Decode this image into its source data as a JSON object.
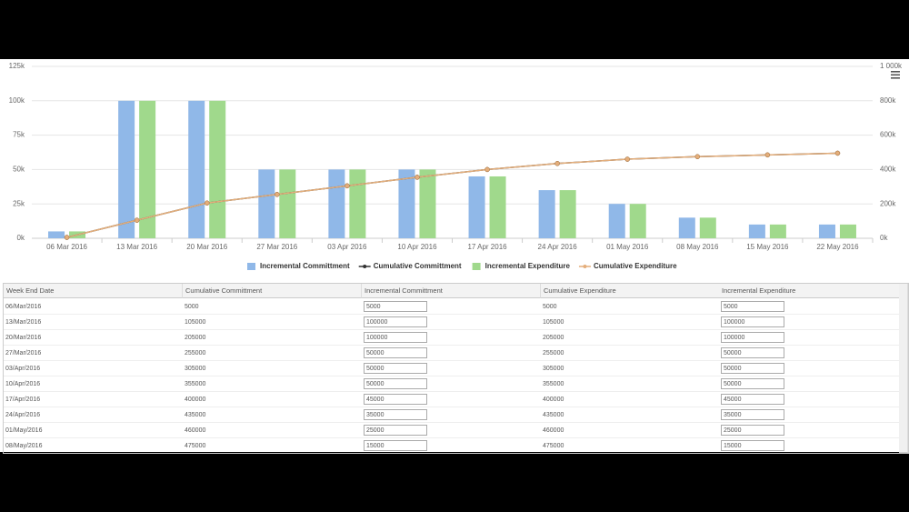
{
  "chart_data": {
    "type": "bar-line",
    "categories": [
      "06 Mar 2016",
      "13 Mar 2016",
      "20 Mar 2016",
      "27 Mar 2016",
      "03 Apr 2016",
      "10 Apr 2016",
      "17 Apr 2016",
      "24 Apr 2016",
      "01 May 2016",
      "08 May 2016",
      "15 May 2016",
      "22 May 2016"
    ],
    "series": [
      {
        "name": "Incremental Committment",
        "type": "bar",
        "color": "#90b8e8",
        "values": [
          5000,
          100000,
          100000,
          50000,
          50000,
          50000,
          45000,
          35000,
          25000,
          15000,
          10000,
          10000
        ]
      },
      {
        "name": "Cumulative Committment",
        "type": "line",
        "axis": "y2",
        "color": "#333333",
        "values": [
          5000,
          105000,
          205000,
          255000,
          305000,
          355000,
          400000,
          435000,
          460000,
          475000,
          485000,
          495000
        ]
      },
      {
        "name": "Incremental Expenditure",
        "type": "bar",
        "color": "#a0d98c",
        "values": [
          5000,
          100000,
          100000,
          50000,
          50000,
          50000,
          45000,
          35000,
          25000,
          15000,
          10000,
          10000
        ]
      },
      {
        "name": "Cumulative Expenditure",
        "type": "line",
        "axis": "y2",
        "color": "#e4ae7b",
        "values": [
          5000,
          105000,
          205000,
          255000,
          305000,
          355000,
          400000,
          435000,
          460000,
          475000,
          485000,
          495000
        ]
      }
    ],
    "ylim": [
      0,
      125000
    ],
    "yticks": [
      {
        "value": 0,
        "label": "0k"
      },
      {
        "value": 25000,
        "label": "25k"
      },
      {
        "value": 50000,
        "label": "50k"
      },
      {
        "value": 75000,
        "label": "75k"
      },
      {
        "value": 100000,
        "label": "100k"
      },
      {
        "value": 125000,
        "label": "125k"
      }
    ],
    "y2lim": [
      0,
      1000000
    ],
    "y2ticks": [
      {
        "value": 0,
        "label": "0k"
      },
      {
        "value": 200000,
        "label": "200k"
      },
      {
        "value": 400000,
        "label": "400k"
      },
      {
        "value": 600000,
        "label": "600k"
      },
      {
        "value": 800000,
        "label": "800k"
      },
      {
        "value": 1000000,
        "label": "1 000k"
      }
    ],
    "grid": true,
    "legend": "bottom"
  },
  "table": {
    "columns": [
      "Week End Date",
      "Cumulative Committment",
      "Incremental Committment",
      "Cumulative Expenditure",
      "Incremental Expenditure"
    ],
    "rows": [
      [
        "06/Mar/2016",
        "5000",
        "5000",
        "5000",
        "5000"
      ],
      [
        "13/Mar/2016",
        "105000",
        "100000",
        "105000",
        "100000"
      ],
      [
        "20/Mar/2016",
        "205000",
        "100000",
        "205000",
        "100000"
      ],
      [
        "27/Mar/2016",
        "255000",
        "50000",
        "255000",
        "50000"
      ],
      [
        "03/Apr/2016",
        "305000",
        "50000",
        "305000",
        "50000"
      ],
      [
        "10/Apr/2016",
        "355000",
        "50000",
        "355000",
        "50000"
      ],
      [
        "17/Apr/2016",
        "400000",
        "45000",
        "400000",
        "45000"
      ],
      [
        "24/Apr/2016",
        "435000",
        "35000",
        "435000",
        "35000"
      ],
      [
        "01/May/2016",
        "460000",
        "25000",
        "460000",
        "25000"
      ],
      [
        "08/May/2016",
        "475000",
        "15000",
        "475000",
        "15000"
      ]
    ]
  }
}
